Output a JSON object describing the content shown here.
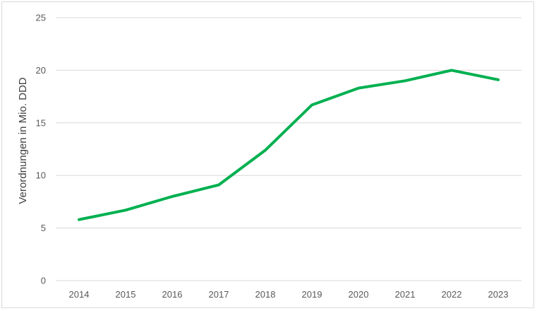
{
  "chart_data": {
    "type": "line",
    "title": "",
    "xlabel": "",
    "ylabel": "Verordnungen in Mio. DDD",
    "categories": [
      "2014",
      "2015",
      "2016",
      "2017",
      "2018",
      "2019",
      "2020",
      "2021",
      "2022",
      "2023"
    ],
    "series": [
      {
        "values": [
          5.8,
          6.7,
          8.0,
          9.1,
          12.4,
          16.7,
          18.3,
          19.0,
          20.0,
          19.1
        ],
        "color": "#00b050"
      }
    ],
    "ylim": [
      0,
      25
    ],
    "yticks": [
      "0",
      "5",
      "10",
      "15",
      "20",
      "25"
    ],
    "grid": true,
    "legend": "none"
  }
}
